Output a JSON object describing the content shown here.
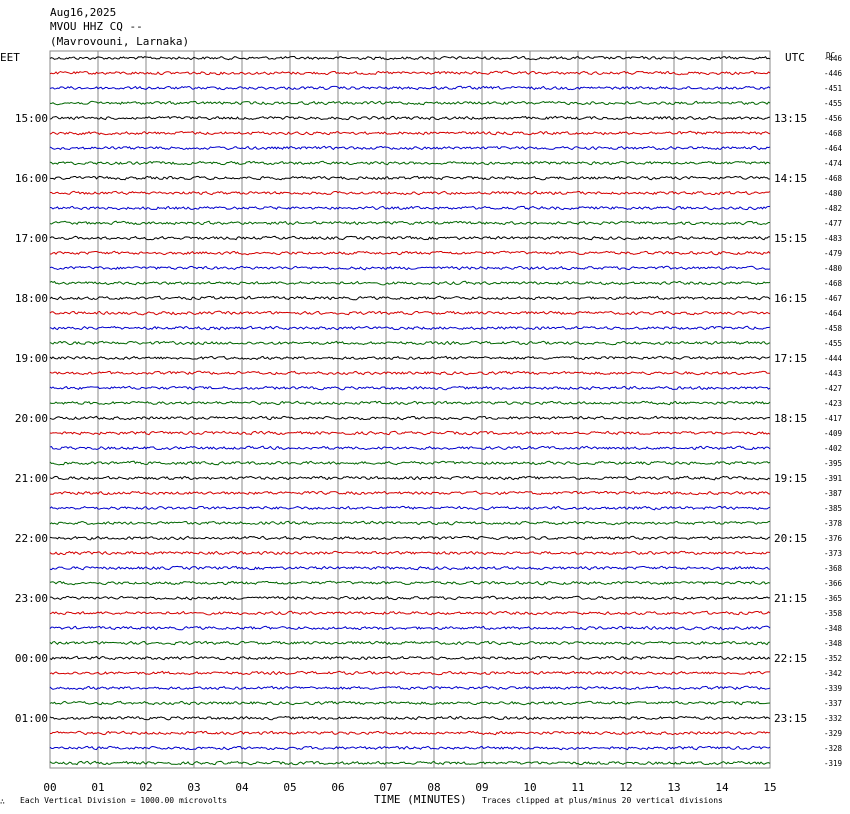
{
  "header": {
    "date": "Aug16,2025",
    "station": "MVOU HHZ CQ --",
    "location": "(Mavrovouni, Larnaka)"
  },
  "left_zone": "EET",
  "right_zone": "UTC",
  "dc_header": "DC",
  "footer": {
    "logo": "∴",
    "scale_note": "Each Vertical Division = 1000.00 microvolts",
    "clip_note": "Traces clipped at plus/minus 20 vertical divisions"
  },
  "chart_data": {
    "type": "line",
    "title": "MVOU HHZ CQ --",
    "xlabel": "TIME (MINUTES)",
    "ylabel": "",
    "x_ticks": [
      "00",
      "01",
      "02",
      "03",
      "04",
      "05",
      "06",
      "07",
      "08",
      "09",
      "10",
      "11",
      "12",
      "13",
      "14",
      "15"
    ],
    "xlim": [
      0,
      15
    ],
    "grid": true,
    "trace_colors": [
      "#000000",
      "#d40000",
      "#0000cc",
      "#006600"
    ],
    "left_time_labels": [
      "15:00",
      "16:00",
      "17:00",
      "18:00",
      "19:00",
      "20:00",
      "21:00",
      "22:00",
      "23:00",
      "00:00",
      "01:00"
    ],
    "right_time_labels": [
      "13:15",
      "14:15",
      "15:15",
      "16:15",
      "17:15",
      "18:15",
      "19:15",
      "20:15",
      "21:15",
      "22:15",
      "23:15"
    ],
    "dc_offsets": [
      -446,
      -446,
      -451,
      -455,
      -456,
      -468,
      -464,
      -474,
      -468,
      -480,
      -482,
      -477,
      -483,
      -479,
      -480,
      -468,
      -467,
      -464,
      -458,
      -455,
      -444,
      -443,
      -427,
      -423,
      -417,
      -409,
      -402,
      -395,
      -391,
      -387,
      -385,
      -378,
      -376,
      -373,
      -368,
      -366,
      -365,
      -358,
      -348,
      -348,
      -352,
      -342,
      -339,
      -337,
      -332,
      -329,
      -328,
      -319
    ]
  }
}
